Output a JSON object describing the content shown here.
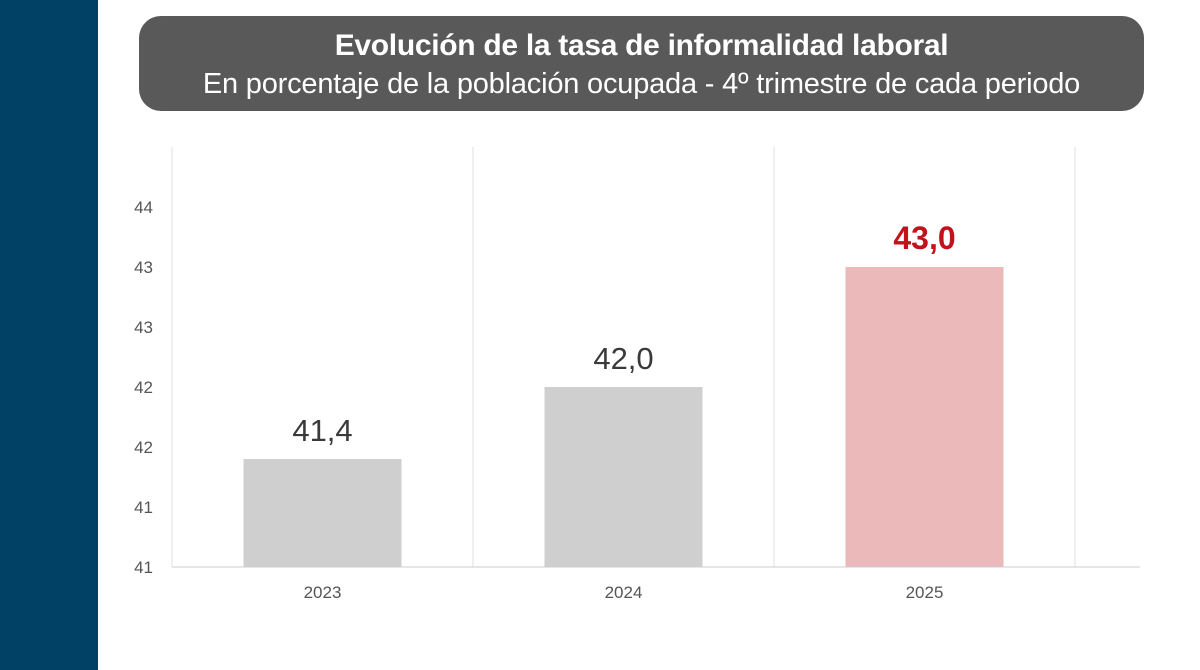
{
  "colors": {
    "side_bar": "#004165",
    "title_bg": "#595959",
    "bar_default": "#cfcfcf",
    "bar_highlight": "#ebb9b9",
    "highlight_text": "#c0141c",
    "label_text": "#3a3a3a",
    "tick_text": "#555555",
    "grid": "#e2e2e2",
    "axis": "#cccccc"
  },
  "chart_data": {
    "type": "bar",
    "title": "Evolución de la tasa de informalidad laboral",
    "subtitle": "En porcentaje de la población ocupada - 4º trimestre de cada periodo",
    "categories": [
      "2023",
      "2024",
      "2025"
    ],
    "values": [
      41.4,
      42.0,
      43.0
    ],
    "data_labels": [
      "41,4",
      "42,0",
      "43,0"
    ],
    "highlight_index": 2,
    "ylim": [
      40.5,
      44.0
    ],
    "yticks": [
      {
        "value": 40.5,
        "label": "41"
      },
      {
        "value": 41.0,
        "label": "41"
      },
      {
        "value": 41.5,
        "label": "42"
      },
      {
        "value": 42.0,
        "label": "42"
      },
      {
        "value": 42.5,
        "label": "43"
      },
      {
        "value": 43.0,
        "label": "43"
      },
      {
        "value": 43.5,
        "label": "44"
      }
    ],
    "xlabel": "",
    "ylabel": "",
    "grid": "vertical",
    "legend": "none"
  }
}
